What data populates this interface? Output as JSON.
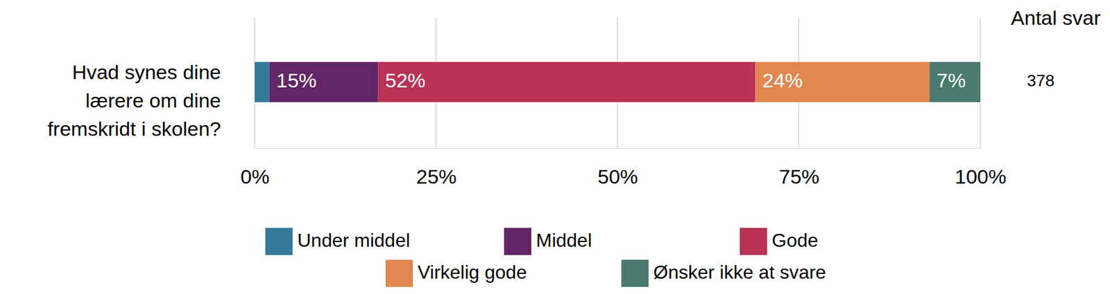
{
  "chart_data": {
    "type": "bar",
    "orientation": "horizontal",
    "stacked": true,
    "data_labels": true,
    "grid": true,
    "legend": "bottom",
    "categories": [
      "Hvad synes dine lærere om dine fremskridt i skolen?"
    ],
    "series": [
      {
        "name": "Under middel",
        "color": "#35799a",
        "values": [
          2
        ],
        "value_labels": [
          null
        ]
      },
      {
        "name": "Middel",
        "color": "#622566",
        "values": [
          15
        ],
        "value_labels": [
          "15%"
        ]
      },
      {
        "name": "Gode",
        "color": "#b83355",
        "values": [
          52
        ],
        "value_labels": [
          "52%"
        ]
      },
      {
        "name": "Virkelig gode",
        "color": "#e08850",
        "values": [
          24
        ],
        "value_labels": [
          "24%"
        ]
      },
      {
        "name": "Ønsker ikke at svare",
        "color": "#4a7a6e",
        "values": [
          7
        ],
        "value_labels": [
          "7%"
        ]
      }
    ],
    "xlim": [
      0,
      100
    ],
    "xticks": [
      {
        "value": 0,
        "label": "0%"
      },
      {
        "value": 25,
        "label": "25%"
      },
      {
        "value": 50,
        "label": "50%"
      },
      {
        "value": 75,
        "label": "75%"
      },
      {
        "value": 100,
        "label": "100%"
      }
    ],
    "totals_title": "Antal svar",
    "totals": [
      378
    ]
  }
}
